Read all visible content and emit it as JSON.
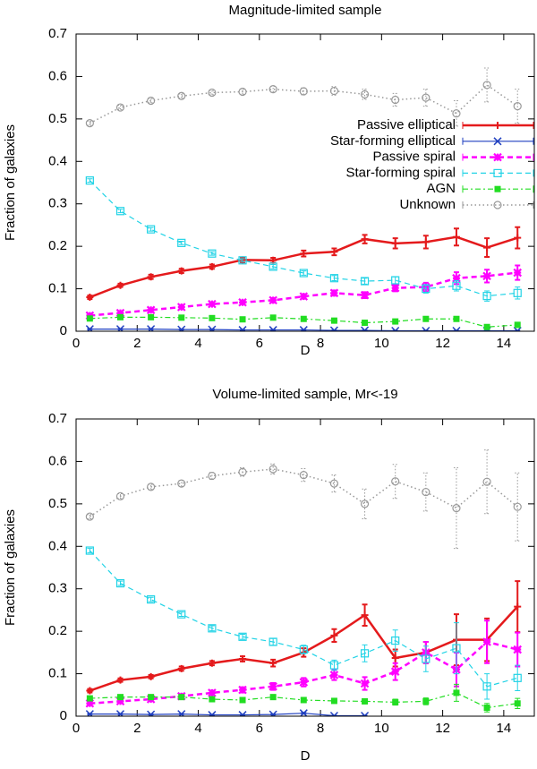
{
  "chart_data": [
    {
      "type": "line",
      "title": "Magnitude-limited sample",
      "xlabel": "D",
      "ylabel": "Fraction of galaxies",
      "x": [
        0.45,
        1.45,
        2.45,
        3.45,
        4.45,
        5.45,
        6.45,
        7.45,
        8.45,
        9.45,
        10.45,
        11.45,
        12.45,
        13.45,
        14.45
      ],
      "xlim": [
        0,
        15
      ],
      "xticks": [
        0,
        2,
        4,
        6,
        8,
        10,
        12,
        14
      ],
      "ylim": [
        0,
        0.7
      ],
      "yticks": [
        0,
        0.1,
        0.2,
        0.3,
        0.4,
        0.5,
        0.6,
        0.7
      ],
      "legend": "upper right",
      "series": [
        {
          "name": "Passive elliptical",
          "color": "#e41a1c",
          "dash": "solid-thick",
          "marker": "plus",
          "values": [
            0.08,
            0.108,
            0.128,
            0.142,
            0.152,
            0.168,
            0.167,
            0.183,
            0.187,
            0.217,
            0.207,
            0.21,
            0.222,
            0.197,
            0.22
          ],
          "errors": [
            0.004,
            0.004,
            0.005,
            0.005,
            0.005,
            0.006,
            0.006,
            0.007,
            0.008,
            0.01,
            0.012,
            0.015,
            0.02,
            0.022,
            0.025
          ]
        },
        {
          "name": "Star-forming elliptical",
          "color": "#1f3fbf",
          "dash": "solid",
          "marker": "cross",
          "values": [
            0.005,
            0.005,
            0.005,
            0.004,
            0.004,
            0.003,
            0.003,
            0.003,
            0.002,
            0.002,
            0.001,
            0.001,
            0.001,
            0.001,
            0.001
          ],
          "errors": [
            0.001,
            0.001,
            0.001,
            0.001,
            0.001,
            0.001,
            0.001,
            0.001,
            0.001,
            0.001,
            0.001,
            0.001,
            0.001,
            0.001,
            0.001
          ]
        },
        {
          "name": "Passive spiral",
          "color": "#ff00ff",
          "dash": "dashed-thick",
          "marker": "star",
          "values": [
            0.037,
            0.043,
            0.05,
            0.057,
            0.064,
            0.068,
            0.073,
            0.082,
            0.09,
            0.085,
            0.102,
            0.104,
            0.125,
            0.13,
            0.138
          ],
          "errors": [
            0.003,
            0.003,
            0.003,
            0.004,
            0.004,
            0.004,
            0.005,
            0.005,
            0.006,
            0.007,
            0.008,
            0.01,
            0.014,
            0.015,
            0.017
          ]
        },
        {
          "name": "Star-forming spiral",
          "color": "#22d3e6",
          "dash": "dashed",
          "marker": "square-open",
          "values": [
            0.355,
            0.283,
            0.24,
            0.208,
            0.183,
            0.167,
            0.152,
            0.137,
            0.125,
            0.118,
            0.12,
            0.1,
            0.107,
            0.083,
            0.09
          ],
          "errors": [
            0.004,
            0.004,
            0.004,
            0.004,
            0.004,
            0.004,
            0.005,
            0.005,
            0.006,
            0.007,
            0.008,
            0.01,
            0.012,
            0.012,
            0.014
          ]
        },
        {
          "name": "AGN",
          "color": "#22dd22",
          "dash": "dashdot",
          "marker": "square",
          "values": [
            0.03,
            0.033,
            0.033,
            0.032,
            0.031,
            0.028,
            0.032,
            0.029,
            0.025,
            0.02,
            0.023,
            0.029,
            0.029,
            0.01,
            0.015
          ],
          "errors": [
            0.002,
            0.002,
            0.002,
            0.002,
            0.002,
            0.002,
            0.002,
            0.003,
            0.003,
            0.003,
            0.004,
            0.004,
            0.005,
            0.005,
            0.006
          ]
        },
        {
          "name": "Unknown",
          "color": "#999999",
          "dash": "dotted",
          "marker": "circle-open",
          "values": [
            0.49,
            0.527,
            0.543,
            0.554,
            0.562,
            0.564,
            0.57,
            0.565,
            0.566,
            0.558,
            0.545,
            0.55,
            0.513,
            0.58,
            0.53
          ],
          "errors": [
            0.005,
            0.005,
            0.005,
            0.005,
            0.005,
            0.006,
            0.007,
            0.008,
            0.01,
            0.012,
            0.015,
            0.02,
            0.03,
            0.04,
            0.04
          ]
        }
      ]
    },
    {
      "type": "line",
      "title": "Volume-limited sample, Mr<-19",
      "xlabel": "D",
      "ylabel": "Fraction of galaxies",
      "x": [
        0.45,
        1.45,
        2.45,
        3.45,
        4.45,
        5.45,
        6.45,
        7.45,
        8.45,
        9.45,
        10.45,
        11.45,
        12.45,
        13.45,
        14.45
      ],
      "xlim": [
        0,
        15
      ],
      "xticks": [
        0,
        2,
        4,
        6,
        8,
        10,
        12,
        14
      ],
      "ylim": [
        0,
        0.7
      ],
      "yticks": [
        0,
        0.1,
        0.2,
        0.3,
        0.4,
        0.5,
        0.6,
        0.7
      ],
      "series": [
        {
          "name": "Passive elliptical",
          "color": "#e41a1c",
          "dash": "solid-thick",
          "marker": "plus",
          "values": [
            0.06,
            0.085,
            0.093,
            0.112,
            0.125,
            0.135,
            0.125,
            0.15,
            0.19,
            0.238,
            0.137,
            0.15,
            0.18,
            0.18,
            0.258
          ],
          "errors": [
            0.004,
            0.004,
            0.004,
            0.005,
            0.005,
            0.006,
            0.008,
            0.01,
            0.015,
            0.025,
            0.02,
            0.025,
            0.06,
            0.05,
            0.06
          ]
        },
        {
          "name": "Star-forming elliptical",
          "color": "#1f3fbf",
          "dash": "solid",
          "marker": "cross",
          "values": [
            0.005,
            0.005,
            0.004,
            0.005,
            0.003,
            0.003,
            0.004,
            0.007,
            0.001,
            0.001,
            null,
            null,
            null,
            null,
            null
          ],
          "errors": [
            0.001,
            0.001,
            0.001,
            0.001,
            0.001,
            0.001,
            0.001,
            0.002,
            0.001,
            0.001,
            null,
            null,
            null,
            null,
            null
          ]
        },
        {
          "name": "Passive spiral",
          "color": "#ff00ff",
          "dash": "dashed-thick",
          "marker": "star",
          "values": [
            0.03,
            0.035,
            0.04,
            0.047,
            0.055,
            0.062,
            0.07,
            0.08,
            0.097,
            0.077,
            0.105,
            0.15,
            0.11,
            0.175,
            0.157
          ],
          "errors": [
            0.003,
            0.003,
            0.004,
            0.005,
            0.005,
            0.006,
            0.008,
            0.01,
            0.012,
            0.015,
            0.02,
            0.025,
            0.04,
            0.05,
            0.04
          ]
        },
        {
          "name": "Star-forming spiral",
          "color": "#22d3e6",
          "dash": "dashed",
          "marker": "square-open",
          "values": [
            0.39,
            0.313,
            0.275,
            0.24,
            0.207,
            0.187,
            0.175,
            0.157,
            0.12,
            0.148,
            0.178,
            0.135,
            0.16,
            0.07,
            0.09
          ],
          "errors": [
            0.005,
            0.005,
            0.005,
            0.005,
            0.006,
            0.006,
            0.008,
            0.01,
            0.012,
            0.02,
            0.025,
            0.03,
            0.06,
            0.03,
            0.03
          ]
        },
        {
          "name": "AGN",
          "color": "#22dd22",
          "dash": "dashdot",
          "marker": "square",
          "values": [
            0.042,
            0.045,
            0.045,
            0.045,
            0.04,
            0.038,
            0.045,
            0.038,
            0.036,
            0.035,
            0.033,
            0.035,
            0.055,
            0.02,
            0.03
          ],
          "errors": [
            0.002,
            0.002,
            0.002,
            0.003,
            0.003,
            0.003,
            0.004,
            0.004,
            0.005,
            0.006,
            0.007,
            0.008,
            0.02,
            0.01,
            0.012
          ]
        },
        {
          "name": "Unknown",
          "color": "#999999",
          "dash": "dotted",
          "marker": "circle-open",
          "values": [
            0.47,
            0.518,
            0.54,
            0.548,
            0.566,
            0.575,
            0.582,
            0.568,
            0.548,
            0.5,
            0.553,
            0.528,
            0.49,
            0.552,
            0.493
          ],
          "errors": [
            0.005,
            0.006,
            0.006,
            0.007,
            0.008,
            0.01,
            0.012,
            0.015,
            0.02,
            0.035,
            0.04,
            0.045,
            0.095,
            0.075,
            0.08
          ]
        }
      ]
    }
  ]
}
